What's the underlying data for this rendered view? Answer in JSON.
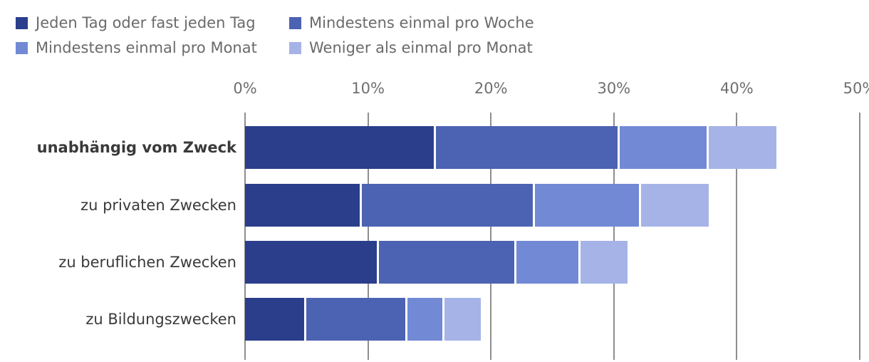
{
  "chart_data": {
    "type": "bar",
    "orientation": "horizontal",
    "stacked": true,
    "title": "",
    "xlabel": "",
    "ylabel": "",
    "xlim": [
      0,
      50
    ],
    "grid": true,
    "legend_position": "top-left",
    "x_ticks": [
      {
        "label": "0%",
        "value": 0
      },
      {
        "label": "10%",
        "value": 10
      },
      {
        "label": "20%",
        "value": 20
      },
      {
        "label": "30%",
        "value": 30
      },
      {
        "label": "40%",
        "value": 40
      },
      {
        "label": "50%",
        "value": 50
      }
    ],
    "categories": [
      {
        "label": "unabhängig vom Zweck",
        "bold": true
      },
      {
        "label": "zu privaten Zwecken",
        "bold": false
      },
      {
        "label": "zu beruflichen Zwecken",
        "bold": false
      },
      {
        "label": "zu Bildungszwecken",
        "bold": false
      }
    ],
    "series": [
      {
        "name": "Jeden Tag oder fast jeden Tag",
        "color": "#2b3e8c",
        "values": [
          15.5,
          9.5,
          10.9,
          5.0
        ]
      },
      {
        "name": "Mindestens einmal pro Woche",
        "color": "#4c62b2",
        "values": [
          15.0,
          14.1,
          11.2,
          8.2
        ]
      },
      {
        "name": "Mindestens einmal pro Monat",
        "color": "#7289d6",
        "values": [
          7.2,
          8.6,
          5.2,
          3.0
        ]
      },
      {
        "name": "Weniger als einmal pro Monat",
        "color": "#a6b3e7",
        "values": [
          5.5,
          5.5,
          3.8,
          3.0
        ]
      }
    ],
    "totals": [
      43.2,
      37.7,
      31.1,
      19.2
    ]
  },
  "colors": {
    "gridline": "#8e8e8e",
    "tick_text": "#6f6f6f",
    "legend_text": "#6a6a6a",
    "category_text": "#3a3a3a",
    "background": "#ffffff"
  }
}
